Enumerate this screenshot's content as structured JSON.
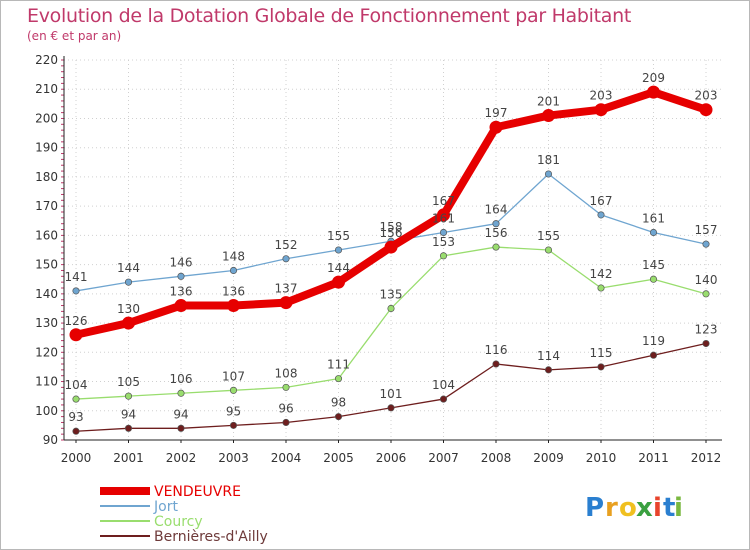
{
  "chart_data": {
    "type": "line",
    "title": "Evolution de la Dotation Globale de Fonctionnement par Habitant",
    "subtitle": "(en € et par an)",
    "xlabel": "",
    "ylabel": "",
    "ylim": [
      90,
      220
    ],
    "yticks": [
      90,
      100,
      110,
      120,
      130,
      140,
      150,
      160,
      170,
      180,
      190,
      200,
      210,
      220
    ],
    "x": [
      "2000",
      "2001",
      "2002",
      "2003",
      "2004",
      "2005",
      "2006",
      "2007",
      "2008",
      "2009",
      "2010",
      "2011",
      "2012"
    ],
    "legend_position": "bottom-left",
    "series": [
      {
        "name": "Bernières-d'Ailly",
        "color": "#6e1e1e",
        "values": [
          93,
          94,
          94,
          95,
          96,
          98,
          101,
          104,
          116,
          114,
          115,
          119,
          123
        ]
      },
      {
        "name": "Courcy",
        "color": "#99dd6e",
        "values": [
          104,
          105,
          106,
          107,
          108,
          111,
          135,
          153,
          156,
          155,
          142,
          145,
          140
        ]
      },
      {
        "name": "Jort",
        "color": "#6fa5d0",
        "values": [
          141,
          144,
          146,
          148,
          152,
          155,
          158,
          161,
          164,
          181,
          167,
          161,
          157
        ]
      },
      {
        "name": "VENDEUVRE",
        "color": "#e60000",
        "values": [
          126,
          130,
          136,
          136,
          137,
          144,
          156,
          167,
          197,
          201,
          203,
          209,
          203
        ]
      }
    ]
  },
  "legend": {
    "items": [
      "VENDEUVRE",
      "Jort",
      "Courcy",
      "Bernières-d'Ailly"
    ]
  },
  "logo": {
    "letters": [
      "P",
      "r",
      "o",
      "x",
      "i",
      "t",
      "i"
    ],
    "colors": [
      "#2a7fd0",
      "#e8a020",
      "#f0c020",
      "#3aa040",
      "#e8442c",
      "#2a7fd0",
      "#7ab840"
    ]
  }
}
